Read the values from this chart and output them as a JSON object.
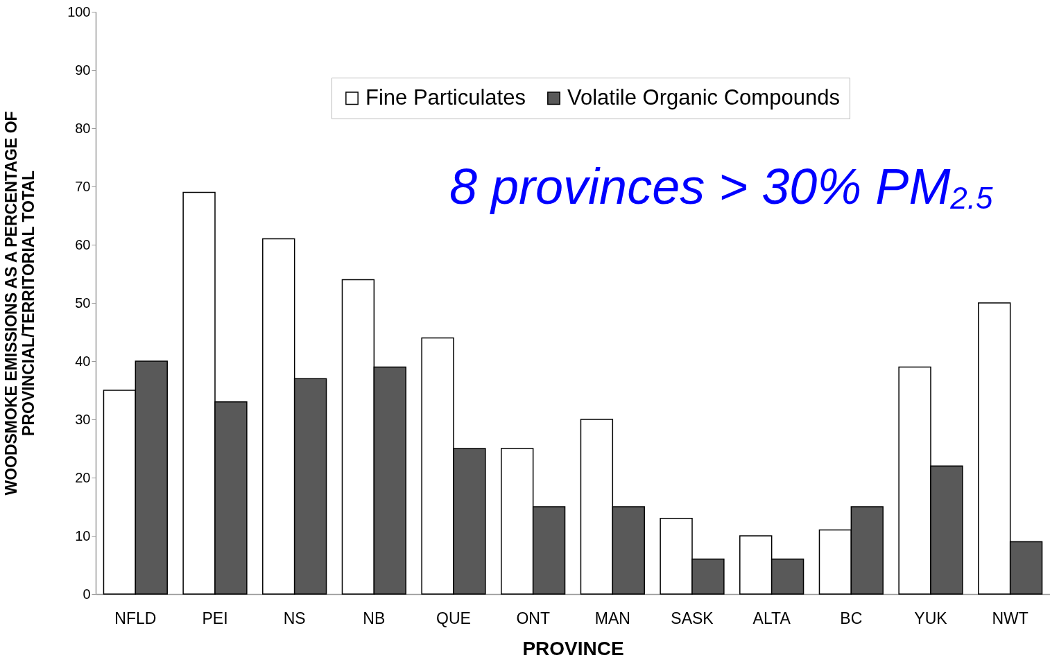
{
  "chart_data": {
    "type": "bar",
    "categories": [
      "NFLD",
      "PEI",
      "NS",
      "NB",
      "QUE",
      "ONT",
      "MAN",
      "SASK",
      "ALTA",
      "BC",
      "YUK",
      "NWT"
    ],
    "series": [
      {
        "name": "Fine Particulates",
        "color": "#ffffff",
        "values": [
          35,
          69,
          61,
          54,
          44,
          25,
          30,
          13,
          10,
          11,
          39,
          50
        ]
      },
      {
        "name": "Volatile Organic Compounds",
        "color": "#595959",
        "values": [
          40,
          33,
          37,
          39,
          25,
          15,
          15,
          6,
          6,
          15,
          22,
          9
        ]
      }
    ],
    "xlabel": "PROVINCE",
    "ylabel": "WOODSMOKE EMISSIONS AS A PERCENTAGE OF\nPROVINCIAL/TERRITORIAL TOTAL",
    "ylim": [
      0,
      100
    ],
    "yticks": [
      0,
      10,
      20,
      30,
      40,
      50,
      60,
      70,
      80,
      90,
      100
    ],
    "legend": "top",
    "annotations": [
      "8 provinces > 30% PM$_{2.5}$"
    ]
  }
}
